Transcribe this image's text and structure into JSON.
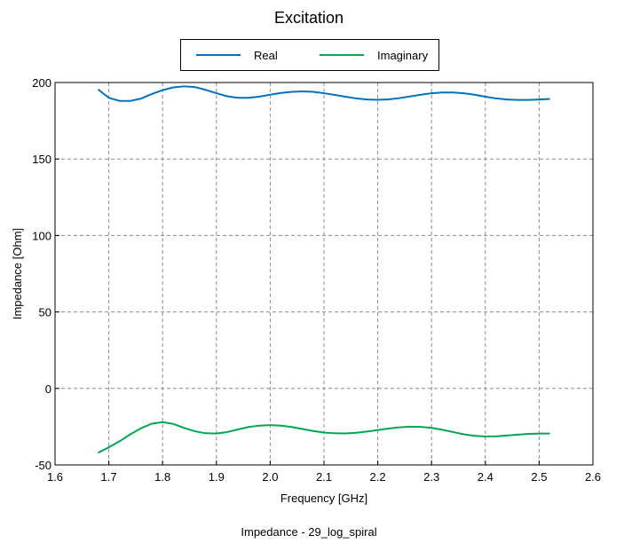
{
  "chart_data": {
    "type": "line",
    "title": "Excitation",
    "xlabel": "Frequency [GHz]",
    "ylabel": "Impedance [Ohm]",
    "xlim": [
      1.6,
      2.6
    ],
    "ylim": [
      -50,
      200
    ],
    "xticks": [
      "1.6",
      "1.7",
      "1.8",
      "1.9",
      "2.0",
      "2.1",
      "2.2",
      "2.3",
      "2.4",
      "2.5",
      "2.6"
    ],
    "yticks": [
      "-50",
      "0",
      "50",
      "100",
      "150",
      "200"
    ],
    "grid": true,
    "legend_position": "top",
    "series": [
      {
        "name": "Real",
        "color": "#0072BD",
        "x": [
          1.68,
          1.7,
          1.72,
          1.74,
          1.76,
          1.78,
          1.8,
          1.82,
          1.84,
          1.86,
          1.88,
          1.9,
          1.92,
          1.94,
          1.96,
          1.98,
          2.0,
          2.02,
          2.04,
          2.06,
          2.08,
          2.1,
          2.12,
          2.14,
          2.16,
          2.18,
          2.2,
          2.22,
          2.24,
          2.26,
          2.28,
          2.3,
          2.32,
          2.34,
          2.36,
          2.38,
          2.4,
          2.42,
          2.44,
          2.46,
          2.48,
          2.5,
          2.52
        ],
        "y": [
          195.5,
          190.0,
          188.0,
          188.0,
          189.5,
          192.5,
          195.0,
          196.8,
          197.5,
          197.0,
          195.2,
          193.0,
          191.0,
          190.0,
          190.0,
          190.8,
          192.0,
          193.2,
          193.9,
          194.2,
          193.9,
          193.0,
          191.9,
          190.7,
          189.6,
          188.9,
          188.7,
          189.0,
          189.8,
          190.9,
          192.0,
          193.0,
          193.5,
          193.5,
          193.0,
          192.0,
          190.7,
          189.6,
          188.9,
          188.6,
          188.6,
          188.9,
          189.3
        ]
      },
      {
        "name": "Imaginary",
        "color": "#00A651",
        "x": [
          1.68,
          1.7,
          1.72,
          1.74,
          1.76,
          1.78,
          1.8,
          1.82,
          1.84,
          1.86,
          1.88,
          1.9,
          1.92,
          1.94,
          1.96,
          1.98,
          2.0,
          2.02,
          2.04,
          2.06,
          2.08,
          2.1,
          2.12,
          2.14,
          2.16,
          2.18,
          2.2,
          2.22,
          2.24,
          2.26,
          2.28,
          2.3,
          2.32,
          2.34,
          2.36,
          2.38,
          2.4,
          2.42,
          2.44,
          2.46,
          2.48,
          2.5,
          2.52
        ],
        "y": [
          -42.0,
          -38.5,
          -34.5,
          -30.0,
          -26.0,
          -23.0,
          -22.0,
          -23.2,
          -25.8,
          -28.0,
          -29.3,
          -29.5,
          -28.5,
          -26.8,
          -25.2,
          -24.3,
          -24.0,
          -24.3,
          -25.2,
          -26.5,
          -27.8,
          -28.8,
          -29.3,
          -29.4,
          -29.0,
          -28.2,
          -27.2,
          -26.2,
          -25.4,
          -25.0,
          -25.1,
          -25.8,
          -27.0,
          -28.5,
          -30.0,
          -31.0,
          -31.4,
          -31.3,
          -30.8,
          -30.2,
          -29.7,
          -29.5,
          -29.5
        ]
      }
    ],
    "caption": "Impedance - 29_log_spiral"
  }
}
